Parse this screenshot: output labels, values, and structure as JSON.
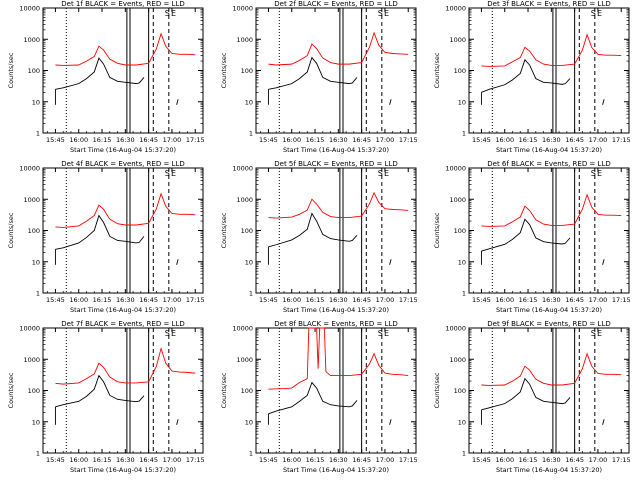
{
  "figure": {
    "ylabel": "Counts/sec",
    "xlabel": "Start Time (16-Aug-04 15:37:20)",
    "series_colors": {
      "events": "#000000",
      "lld": "#ff0000"
    },
    "region_markers": [
      "S",
      "E"
    ]
  },
  "chart_data": [
    {
      "type": "line",
      "title": "Det 1f BLACK = Events, RED = LLD",
      "x_tick_labels": [
        "15:45",
        "16:00",
        "16:15",
        "16:30",
        "16:45",
        "17:00",
        "17:15"
      ],
      "y_tick_labels": [
        "1",
        "10",
        "100",
        "1000",
        "10000"
      ],
      "ylim": [
        1,
        10000
      ],
      "yscale": "log",
      "xlim": [
        "15:37",
        "17:20"
      ],
      "series": [
        {
          "key": "events",
          "x": [
            "15:45",
            "15:50",
            "16:00",
            "16:05",
            "16:10",
            "16:13",
            "16:16",
            "16:20",
            "16:25",
            "16:30",
            "16:37",
            "16:39",
            "16:42",
            "17:03",
            "17:04"
          ],
          "values": [
            25,
            28,
            38,
            55,
            90,
            250,
            160,
            60,
            45,
            42,
            38,
            40,
            60,
            8,
            12
          ]
        },
        {
          "key": "lld",
          "x": [
            "15:45",
            "15:50",
            "16:00",
            "16:05",
            "16:10",
            "16:13",
            "16:16",
            "16:20",
            "16:25",
            "16:30",
            "16:37",
            "16:45",
            "16:50",
            "16:53",
            "16:56",
            "17:00",
            "17:05",
            "17:10",
            "17:15"
          ],
          "values": [
            150,
            145,
            150,
            200,
            280,
            600,
            450,
            230,
            170,
            150,
            150,
            170,
            500,
            1500,
            600,
            350,
            330,
            330,
            320
          ]
        }
      ]
    },
    {
      "type": "line",
      "title": "Det 2f BLACK = Events, RED = LLD",
      "x_tick_labels": [
        "15:45",
        "16:00",
        "16:15",
        "16:30",
        "16:45",
        "17:00",
        "17:15"
      ],
      "y_tick_labels": [
        "1",
        "10",
        "100",
        "1000",
        "10000"
      ],
      "ylim": [
        1,
        10000
      ],
      "yscale": "log",
      "xlim": [
        "15:37",
        "17:20"
      ],
      "series": [
        {
          "key": "events",
          "x": [
            "15:45",
            "15:50",
            "16:00",
            "16:05",
            "16:10",
            "16:13",
            "16:16",
            "16:20",
            "16:25",
            "16:30",
            "16:37",
            "16:39",
            "16:42",
            "17:03",
            "17:04"
          ],
          "values": [
            25,
            28,
            38,
            55,
            90,
            260,
            170,
            60,
            45,
            42,
            38,
            40,
            60,
            8,
            12
          ]
        },
        {
          "key": "lld",
          "x": [
            "15:45",
            "15:50",
            "16:00",
            "16:05",
            "16:10",
            "16:13",
            "16:16",
            "16:20",
            "16:25",
            "16:30",
            "16:37",
            "16:45",
            "16:50",
            "16:53",
            "16:56",
            "17:00",
            "17:05",
            "17:10",
            "17:15"
          ],
          "values": [
            160,
            150,
            160,
            210,
            300,
            700,
            500,
            250,
            180,
            160,
            160,
            180,
            550,
            1600,
            650,
            380,
            350,
            340,
            330
          ]
        }
      ]
    },
    {
      "type": "line",
      "title": "Det 3f BLACK = Events, RED = LLD",
      "x_tick_labels": [
        "15:45",
        "16:00",
        "16:15",
        "16:30",
        "16:45",
        "17:00",
        "17:15"
      ],
      "y_tick_labels": [
        "1",
        "10",
        "100",
        "1000",
        "10000"
      ],
      "ylim": [
        1,
        10000
      ],
      "yscale": "log",
      "xlim": [
        "15:37",
        "17:20"
      ],
      "series": [
        {
          "key": "events",
          "x": [
            "15:45",
            "15:50",
            "16:00",
            "16:05",
            "16:10",
            "16:13",
            "16:16",
            "16:20",
            "16:25",
            "16:30",
            "16:37",
            "16:39",
            "16:42",
            "17:03",
            "17:04"
          ],
          "values": [
            20,
            25,
            35,
            50,
            80,
            220,
            150,
            55,
            42,
            40,
            36,
            38,
            55,
            8,
            12
          ]
        },
        {
          "key": "lld",
          "x": [
            "15:45",
            "15:50",
            "16:00",
            "16:05",
            "16:10",
            "16:13",
            "16:16",
            "16:20",
            "16:25",
            "16:30",
            "16:37",
            "16:45",
            "16:50",
            "16:53",
            "16:56",
            "17:00",
            "17:05",
            "17:10",
            "17:15"
          ],
          "values": [
            140,
            135,
            140,
            190,
            260,
            550,
            420,
            220,
            160,
            145,
            145,
            160,
            450,
            1400,
            550,
            330,
            310,
            310,
            300
          ]
        }
      ]
    },
    {
      "type": "line",
      "title": "Det 4f BLACK = Events, RED = LLD",
      "x_tick_labels": [
        "15:45",
        "16:00",
        "16:15",
        "16:30",
        "16:45",
        "17:00",
        "17:15"
      ],
      "y_tick_labels": [
        "1",
        "10",
        "100",
        "1000",
        "10000"
      ],
      "ylim": [
        1,
        10000
      ],
      "yscale": "log",
      "xlim": [
        "15:37",
        "17:20"
      ],
      "series": [
        {
          "key": "events",
          "x": [
            "15:45",
            "15:50",
            "16:00",
            "16:05",
            "16:10",
            "16:13",
            "16:16",
            "16:20",
            "16:25",
            "16:30",
            "16:37",
            "16:39",
            "16:42",
            "17:03",
            "17:04"
          ],
          "values": [
            25,
            28,
            40,
            60,
            100,
            300,
            180,
            65,
            48,
            45,
            40,
            42,
            65,
            8,
            12
          ]
        },
        {
          "key": "lld",
          "x": [
            "15:45",
            "15:50",
            "16:00",
            "16:05",
            "16:10",
            "16:13",
            "16:16",
            "16:20",
            "16:25",
            "16:30",
            "16:37",
            "16:45",
            "16:50",
            "16:53",
            "16:56",
            "17:00",
            "17:05",
            "17:10",
            "17:15"
          ],
          "values": [
            130,
            125,
            140,
            200,
            300,
            650,
            480,
            230,
            165,
            150,
            150,
            170,
            500,
            1500,
            600,
            350,
            330,
            330,
            320
          ]
        }
      ]
    },
    {
      "type": "line",
      "title": "Det 5f BLACK = Events, RED = LLD",
      "x_tick_labels": [
        "15:45",
        "16:00",
        "16:15",
        "16:30",
        "16:45",
        "17:00",
        "17:15"
      ],
      "y_tick_labels": [
        "1",
        "10",
        "100",
        "1000",
        "10000"
      ],
      "ylim": [
        1,
        10000
      ],
      "yscale": "log",
      "xlim": [
        "15:37",
        "17:20"
      ],
      "series": [
        {
          "key": "events",
          "x": [
            "15:45",
            "15:50",
            "16:00",
            "16:05",
            "16:10",
            "16:13",
            "16:16",
            "16:20",
            "16:25",
            "16:30",
            "16:37",
            "16:39",
            "16:42",
            "17:03",
            "17:04"
          ],
          "values": [
            30,
            35,
            50,
            70,
            110,
            350,
            200,
            75,
            55,
            50,
            45,
            48,
            70,
            8,
            12
          ]
        },
        {
          "key": "lld",
          "x": [
            "15:45",
            "15:50",
            "16:00",
            "16:05",
            "16:10",
            "16:13",
            "16:16",
            "16:20",
            "16:25",
            "16:30",
            "16:37",
            "16:45",
            "16:50",
            "16:53",
            "16:56",
            "17:00",
            "17:05",
            "17:10",
            "17:15"
          ],
          "values": [
            260,
            250,
            270,
            330,
            450,
            1000,
            700,
            380,
            280,
            260,
            260,
            290,
            700,
            1600,
            800,
            500,
            470,
            460,
            440
          ]
        }
      ]
    },
    {
      "type": "line",
      "title": "Det 6f BLACK = Events, RED = LLD",
      "x_tick_labels": [
        "15:45",
        "16:00",
        "16:15",
        "16:30",
        "16:45",
        "17:00",
        "17:15"
      ],
      "y_tick_labels": [
        "1",
        "10",
        "100",
        "1000",
        "10000"
      ],
      "ylim": [
        1,
        10000
      ],
      "yscale": "log",
      "xlim": [
        "15:37",
        "17:20"
      ],
      "series": [
        {
          "key": "events",
          "x": [
            "15:45",
            "15:50",
            "16:00",
            "16:05",
            "16:10",
            "16:13",
            "16:16",
            "16:20",
            "16:25",
            "16:30",
            "16:37",
            "16:39",
            "16:42",
            "17:03",
            "17:04"
          ],
          "values": [
            22,
            26,
            36,
            52,
            85,
            230,
            155,
            58,
            44,
            40,
            37,
            39,
            58,
            8,
            12
          ]
        },
        {
          "key": "lld",
          "x": [
            "15:45",
            "15:50",
            "16:00",
            "16:05",
            "16:10",
            "16:13",
            "16:16",
            "16:20",
            "16:25",
            "16:30",
            "16:37",
            "16:45",
            "16:50",
            "16:53",
            "16:56",
            "17:00",
            "17:05",
            "17:10",
            "17:15"
          ],
          "values": [
            140,
            135,
            140,
            190,
            270,
            600,
            440,
            220,
            160,
            145,
            145,
            160,
            480,
            1400,
            560,
            330,
            310,
            310,
            300
          ]
        }
      ]
    },
    {
      "type": "line",
      "title": "Det 7f BLACK = Events, RED = LLD",
      "x_tick_labels": [
        "15:45",
        "16:00",
        "16:15",
        "16:30",
        "16:45",
        "17:00",
        "17:15"
      ],
      "y_tick_labels": [
        "1",
        "10",
        "100",
        "1000",
        "10000"
      ],
      "ylim": [
        1,
        10000
      ],
      "yscale": "log",
      "xlim": [
        "15:37",
        "17:20"
      ],
      "series": [
        {
          "key": "events",
          "x": [
            "15:45",
            "15:50",
            "16:00",
            "16:05",
            "16:10",
            "16:13",
            "16:16",
            "16:20",
            "16:25",
            "16:30",
            "16:37",
            "16:39",
            "16:42",
            "17:03",
            "17:04"
          ],
          "values": [
            30,
            35,
            45,
            65,
            110,
            300,
            190,
            70,
            52,
            48,
            44,
            46,
            68,
            8,
            12
          ]
        },
        {
          "key": "lld",
          "x": [
            "15:45",
            "15:50",
            "16:00",
            "16:05",
            "16:10",
            "16:13",
            "16:16",
            "16:20",
            "16:25",
            "16:30",
            "16:37",
            "16:45",
            "16:50",
            "16:53",
            "16:56",
            "17:00",
            "17:05",
            "17:10",
            "17:15"
          ],
          "values": [
            170,
            160,
            175,
            240,
            340,
            750,
            550,
            270,
            190,
            175,
            175,
            190,
            600,
            2200,
            750,
            420,
            390,
            380,
            360
          ]
        }
      ]
    },
    {
      "type": "line",
      "title": "Det 8f BLACK = Events, RED = LLD",
      "x_tick_labels": [
        "15:45",
        "16:00",
        "16:15",
        "16:30",
        "16:45",
        "17:00",
        "17:15"
      ],
      "y_tick_labels": [
        "1",
        "10",
        "100",
        "1000",
        "10000"
      ],
      "ylim": [
        1,
        10000
      ],
      "yscale": "log",
      "xlim": [
        "15:37",
        "17:20"
      ],
      "series": [
        {
          "key": "events",
          "x": [
            "15:45",
            "15:50",
            "16:00",
            "16:05",
            "16:10",
            "16:13",
            "16:16",
            "16:20",
            "16:25",
            "16:30",
            "16:37",
            "16:39",
            "16:42",
            "17:03",
            "17:04"
          ],
          "values": [
            18,
            22,
            30,
            45,
            70,
            180,
            120,
            45,
            35,
            32,
            30,
            32,
            48,
            8,
            12
          ]
        },
        {
          "key": "lld",
          "x": [
            "15:45",
            "15:55",
            "16:00",
            "16:05",
            "16:10",
            "16:11",
            "16:12",
            "16:16",
            "16:17",
            "16:18",
            "16:20",
            "16:21",
            "16:22",
            "16:25",
            "16:37",
            "16:45",
            "16:50",
            "16:53",
            "16:56",
            "17:00",
            "17:05",
            "17:10",
            "17:15"
          ],
          "values": [
            110,
            115,
            120,
            180,
            240,
            10000,
            10000,
            10000,
            500,
            10000,
            10000,
            10000,
            400,
            300,
            300,
            330,
            700,
            1500,
            650,
            360,
            330,
            320,
            300
          ]
        }
      ]
    },
    {
      "type": "line",
      "title": "Det 9f BLACK = Events, RED = LLD",
      "x_tick_labels": [
        "15:45",
        "16:00",
        "16:15",
        "16:30",
        "16:45",
        "17:00",
        "17:15"
      ],
      "y_tick_labels": [
        "1",
        "10",
        "100",
        "1000",
        "10000"
      ],
      "ylim": [
        1,
        10000
      ],
      "yscale": "log",
      "xlim": [
        "15:37",
        "17:20"
      ],
      "series": [
        {
          "key": "events",
          "x": [
            "15:45",
            "15:50",
            "16:00",
            "16:05",
            "16:10",
            "16:13",
            "16:16",
            "16:20",
            "16:25",
            "16:30",
            "16:37",
            "16:39",
            "16:42",
            "17:03",
            "17:04"
          ],
          "values": [
            24,
            28,
            38,
            55,
            90,
            240,
            160,
            60,
            45,
            42,
            38,
            40,
            60,
            8,
            12
          ]
        },
        {
          "key": "lld",
          "x": [
            "15:45",
            "15:50",
            "16:00",
            "16:05",
            "16:10",
            "16:13",
            "16:16",
            "16:20",
            "16:25",
            "16:30",
            "16:37",
            "16:45",
            "16:50",
            "16:53",
            "16:56",
            "17:00",
            "17:05",
            "17:10",
            "17:15"
          ],
          "values": [
            150,
            145,
            150,
            200,
            290,
            600,
            450,
            230,
            170,
            150,
            150,
            170,
            500,
            1500,
            600,
            350,
            330,
            330,
            320
          ]
        }
      ]
    }
  ]
}
